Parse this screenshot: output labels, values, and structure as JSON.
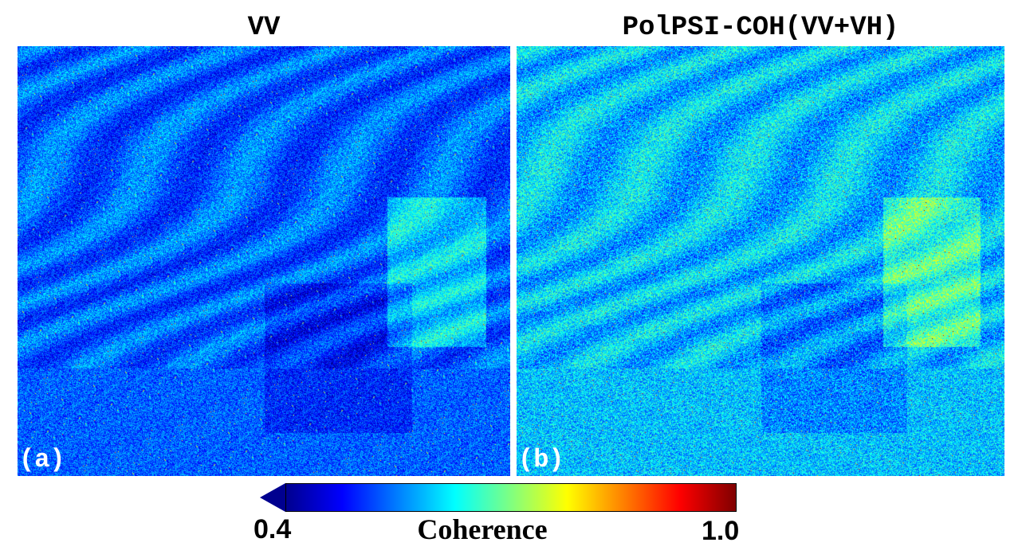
{
  "panels": [
    {
      "title": "VV",
      "label": "(a)"
    },
    {
      "title": "PolPSI-COH(VV+VH)",
      "label": "(b)"
    }
  ],
  "colorbar": {
    "label": "Coherence",
    "min": "0.4",
    "max": "1.0",
    "colormap": [
      "#00008f",
      "#0000ff",
      "#0080ff",
      "#00ffff",
      "#80ff80",
      "#ffff00",
      "#ff8000",
      "#ff0000",
      "#800000"
    ]
  }
}
